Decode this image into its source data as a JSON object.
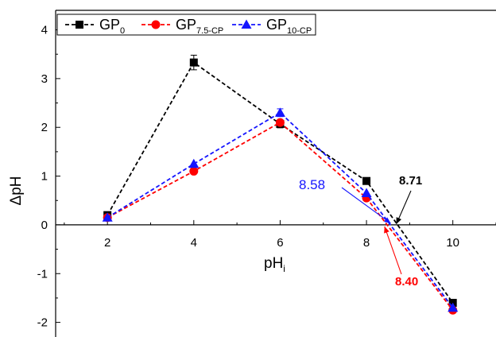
{
  "chart_data": {
    "type": "line",
    "xlabel_main": "pH",
    "xlabel_sub": "i",
    "ylabel": "ΔpH",
    "xlim": [
      0.8,
      11
    ],
    "ylim": [
      -2.3,
      4.4
    ],
    "x_ticks": [
      2,
      4,
      6,
      8,
      10
    ],
    "y_ticks": [
      -2,
      -1,
      0,
      1,
      2,
      3,
      4
    ],
    "x": [
      2,
      4,
      6,
      8,
      10
    ],
    "series": [
      {
        "name_main": "GP",
        "name_sub": "0",
        "color": "#000000",
        "marker": "square",
        "values": [
          0.2,
          3.33,
          2.07,
          0.9,
          -1.6
        ],
        "errors": [
          0,
          0.15,
          0.08,
          0,
          0.05
        ]
      },
      {
        "name_main": "GP",
        "name_sub": "7.5-CP",
        "color": "#ff0000",
        "marker": "circle",
        "values": [
          0.15,
          1.1,
          2.1,
          0.55,
          -1.75
        ],
        "errors": [
          0,
          0,
          0,
          0,
          0.05
        ]
      },
      {
        "name_main": "GP",
        "name_sub": "10-CP",
        "color": "#1515ff",
        "marker": "triangle",
        "values": [
          0.15,
          1.25,
          2.3,
          0.65,
          -1.7
        ],
        "errors": [
          0,
          0,
          0.08,
          0,
          0
        ]
      }
    ],
    "annotations": [
      {
        "text": "8.71",
        "color": "#000000",
        "x": 8.71,
        "y": 0
      },
      {
        "text": "8.58",
        "color": "#1515ff",
        "x": 8.58,
        "y": 0
      },
      {
        "text": "8.40",
        "color": "#ff0000",
        "x": 8.4,
        "y": 0
      }
    ],
    "legend_position": "top-left",
    "grid": false
  }
}
